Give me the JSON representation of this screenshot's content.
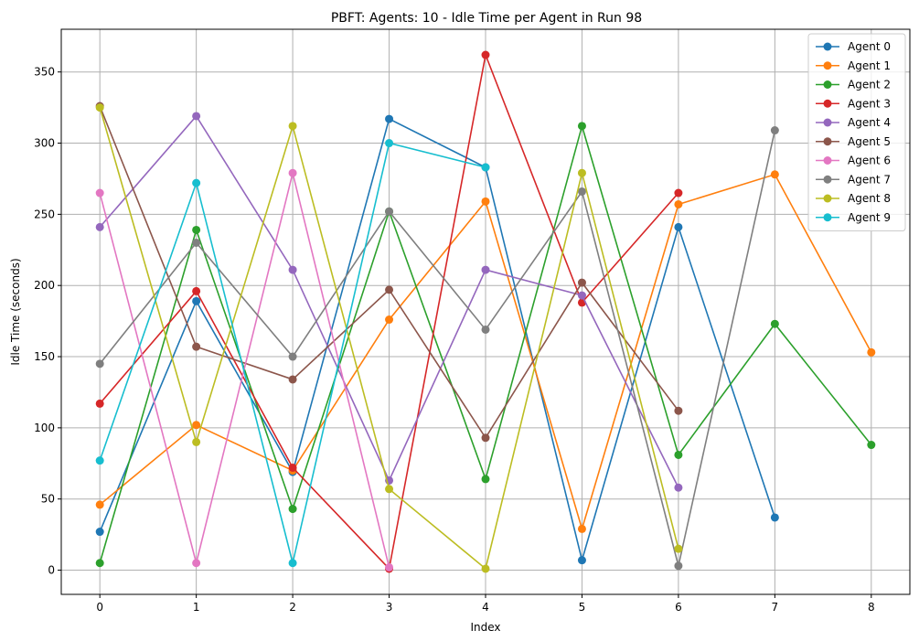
{
  "chart_data": {
    "type": "line",
    "title": "PBFT: Agents: 10 - Idle Time per Agent in Run 98",
    "xlabel": "Index",
    "ylabel": "Idle Time (seconds)",
    "xlim": [
      -0.4,
      8.4
    ],
    "ylim": [
      -17,
      380
    ],
    "xticks": [
      0,
      1,
      2,
      3,
      4,
      5,
      6,
      7,
      8
    ],
    "yticks": [
      0,
      50,
      100,
      150,
      200,
      250,
      300,
      350
    ],
    "grid": true,
    "legend_position": "top-right",
    "series": [
      {
        "name": "Agent 0",
        "color": "#1f77b4",
        "x": [
          0,
          1,
          2,
          3,
          4,
          5,
          6,
          7
        ],
        "values": [
          27,
          189,
          69,
          317,
          283,
          7,
          241,
          37
        ]
      },
      {
        "name": "Agent 1",
        "color": "#ff7f0e",
        "x": [
          0,
          1,
          2,
          3,
          4,
          5,
          6,
          7,
          8
        ],
        "values": [
          46,
          102,
          70,
          176,
          259,
          29,
          257,
          278,
          153
        ]
      },
      {
        "name": "Agent 2",
        "color": "#2ca02c",
        "x": [
          0,
          1,
          2,
          3,
          4,
          5,
          6,
          7,
          8
        ],
        "values": [
          5,
          239,
          43,
          252,
          64,
          312,
          81,
          173,
          88
        ]
      },
      {
        "name": "Agent 3",
        "color": "#d62728",
        "x": [
          0,
          1,
          2,
          3,
          4,
          5,
          6
        ],
        "values": [
          117,
          196,
          72,
          1,
          362,
          188,
          265
        ]
      },
      {
        "name": "Agent 4",
        "color": "#9467bd",
        "x": [
          0,
          1,
          2,
          3,
          4,
          5,
          6
        ],
        "values": [
          241,
          319,
          211,
          63,
          211,
          193,
          58
        ]
      },
      {
        "name": "Agent 5",
        "color": "#8c564b",
        "x": [
          0,
          1,
          2,
          3,
          4,
          5,
          6
        ],
        "values": [
          326,
          157,
          134,
          197,
          93,
          202,
          112
        ]
      },
      {
        "name": "Agent 6",
        "color": "#e377c2",
        "x": [
          0,
          1,
          2,
          3
        ],
        "values": [
          265,
          5,
          279,
          2
        ]
      },
      {
        "name": "Agent 7",
        "color": "#7f7f7f",
        "x": [
          0,
          1,
          2,
          3,
          4,
          5,
          6,
          7
        ],
        "values": [
          145,
          230,
          150,
          252,
          169,
          266,
          3,
          309
        ]
      },
      {
        "name": "Agent 8",
        "color": "#bcbd22",
        "x": [
          0,
          1,
          2,
          3,
          4,
          5,
          6
        ],
        "values": [
          325,
          90,
          312,
          57,
          1,
          279,
          15
        ]
      },
      {
        "name": "Agent 9",
        "color": "#17becf",
        "x": [
          0,
          1,
          2,
          3,
          4
        ],
        "values": [
          77,
          272,
          5,
          300,
          283
        ]
      }
    ]
  }
}
